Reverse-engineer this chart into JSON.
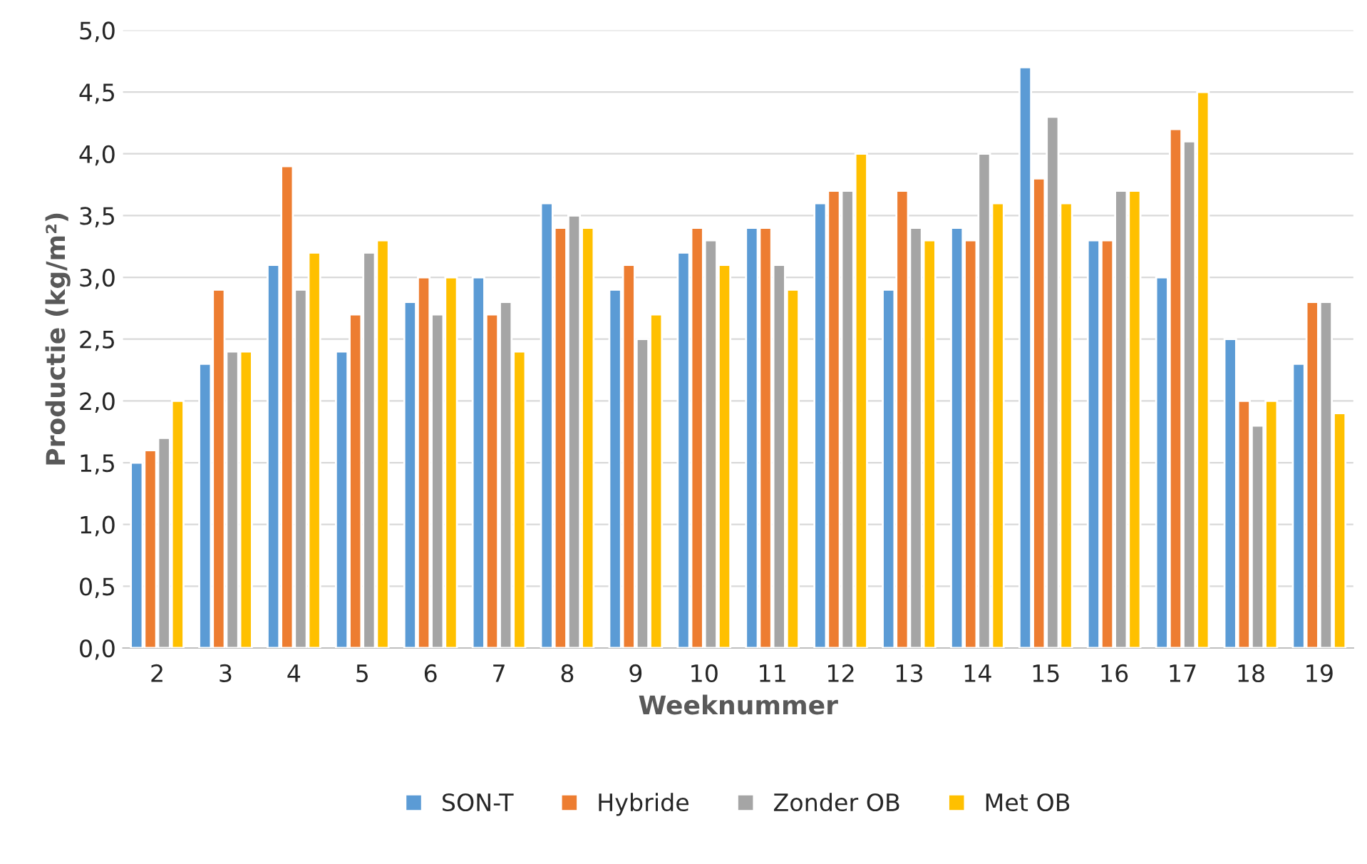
{
  "chart_data": {
    "type": "bar",
    "xlabel": "Weeknummer",
    "ylabel": "Productie (kg/m²)",
    "categories": [
      "2",
      "3",
      "4",
      "5",
      "6",
      "7",
      "8",
      "9",
      "10",
      "11",
      "12",
      "13",
      "14",
      "15",
      "16",
      "17",
      "18",
      "19"
    ],
    "series": [
      {
        "name": "SON-T",
        "color": "#5b9bd5",
        "values": [
          1.5,
          2.3,
          3.1,
          2.4,
          2.8,
          3.0,
          3.6,
          2.9,
          3.2,
          3.4,
          3.6,
          2.9,
          3.4,
          4.7,
          3.3,
          3.0,
          2.5,
          2.3
        ]
      },
      {
        "name": "Hybride",
        "color": "#ed7d31",
        "values": [
          1.6,
          2.9,
          3.9,
          2.7,
          3.0,
          2.7,
          3.4,
          3.1,
          3.4,
          3.4,
          3.7,
          3.7,
          3.3,
          3.8,
          3.3,
          4.2,
          2.0,
          2.8
        ]
      },
      {
        "name": "Zonder OB",
        "color": "#a5a5a5",
        "values": [
          1.7,
          2.4,
          2.9,
          3.2,
          2.7,
          2.8,
          3.5,
          2.5,
          3.3,
          3.1,
          3.7,
          3.4,
          4.0,
          4.3,
          3.7,
          4.1,
          1.8,
          2.8
        ]
      },
      {
        "name": "Met OB",
        "color": "#ffc000",
        "values": [
          2.0,
          2.4,
          3.2,
          3.3,
          3.0,
          2.4,
          3.4,
          2.7,
          3.1,
          2.9,
          4.0,
          3.3,
          3.6,
          3.6,
          3.7,
          4.5,
          2.0,
          1.9
        ]
      }
    ],
    "ylim": [
      0,
      5
    ],
    "yticks": [
      {
        "value": 0,
        "label": "0,0"
      },
      {
        "value": 0.5,
        "label": "0,5"
      },
      {
        "value": 1,
        "label": "1,0"
      },
      {
        "value": 1.5,
        "label": "1,5"
      },
      {
        "value": 2,
        "label": "2,0"
      },
      {
        "value": 2.5,
        "label": "2,5"
      },
      {
        "value": 3,
        "label": "3,0"
      },
      {
        "value": 3.5,
        "label": "3,5"
      },
      {
        "value": 4,
        "label": "4,0"
      },
      {
        "value": 4.5,
        "label": "4,5"
      },
      {
        "value": 5,
        "label": "5,0"
      }
    ],
    "grid": "y",
    "legend": "bottom"
  }
}
